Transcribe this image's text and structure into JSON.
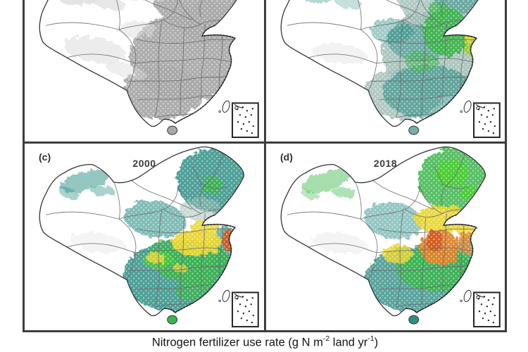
{
  "figure_type": "four-panel choropleth map figure of China",
  "panels": {
    "top_left": {
      "scheme": "grayscale"
    },
    "top_right": {
      "scheme": "low"
    },
    "bottom_left": {
      "label": "(c)",
      "year": "2000",
      "scheme": "mid"
    },
    "bottom_right": {
      "label": "(d)",
      "year": "2018",
      "scheme": "high"
    }
  },
  "caption": {
    "part1": "Nitrogen fertilizer use rate (g N m",
    "sup1": "-2",
    "part2": " land yr",
    "sup2": "-1",
    "part3": ")"
  },
  "colors": {
    "teal": "#2e8f85",
    "teal_light": "#74b0a7",
    "gray_teal": "#9fbcb5",
    "green": "#3ab54a",
    "bright_green": "#4ad02e",
    "yellow_green": "#9ccb2e",
    "yellow": "#e9d52f",
    "orange": "#e0832a",
    "deep_orange": "#d2591e",
    "gray": "#a9a9a9",
    "light_gray": "#d9d9d9",
    "panel_border": "#3d3d3d",
    "province_line": "#6a6a6a",
    "outline": "#333333"
  }
}
